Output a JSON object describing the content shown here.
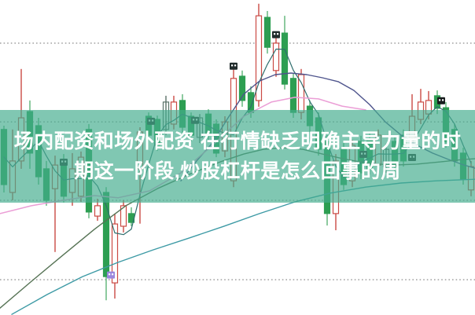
{
  "overlay": {
    "line1": "场内配资和场外配资 在行情缺乏明确主导力量的时",
    "line2": "期这一阶段,炒股杠杆是怎么回事的周",
    "band_color": "rgba(68,172,142,0.68)",
    "text_color": "#ffffff"
  },
  "chart_data": {
    "type": "candlestick",
    "title": "",
    "xlabel": "",
    "ylabel": "",
    "background": "#ffffff",
    "xlim": [
      0,
      604
    ],
    "ylim": [
      0,
      100
    ],
    "grid": {
      "on": true,
      "style": "dotted",
      "color": "#a8a8a8",
      "values": [
        86.3,
        61.3,
        36.4,
        11.2
      ]
    },
    "colors": {
      "bearish_body": "#2d9e52",
      "bearish_wick": "#5cb476",
      "bullish_body": "#cb4a44",
      "bullish_fill": "#ffffff",
      "neutral_body": "#5a7268"
    },
    "candles": [
      {
        "x": 5,
        "o": 58.9,
        "h": 60.1,
        "l": 38.9,
        "c": 41.4,
        "d": "dn"
      },
      {
        "x": 16,
        "o": 38.9,
        "h": 58.9,
        "l": 36.4,
        "c": 48.9,
        "d": "up"
      },
      {
        "x": 27,
        "o": 48.9,
        "h": 78.1,
        "l": 46.4,
        "c": 62.6,
        "d": "up"
      },
      {
        "x": 38,
        "o": 64.6,
        "h": 68.1,
        "l": 46.4,
        "c": 51.4,
        "d": "dn"
      },
      {
        "x": 49,
        "o": 60.1,
        "h": 62.6,
        "l": 41.4,
        "c": 43.9,
        "d": "dn"
      },
      {
        "x": 59,
        "o": 46.4,
        "h": 48.9,
        "l": 34.7,
        "c": 36.4,
        "d": "dn"
      },
      {
        "x": 70,
        "o": 40.1,
        "h": 50.6,
        "l": 20.0,
        "c": 47.6,
        "d": "up"
      },
      {
        "x": 81,
        "o": 48.9,
        "h": 51.1,
        "l": 35.7,
        "c": 37.7,
        "d": "dn"
      },
      {
        "x": 92,
        "o": 38.9,
        "h": 51.4,
        "l": 34.7,
        "c": 46.4,
        "d": "up"
      },
      {
        "x": 103,
        "o": 37.7,
        "h": 51.9,
        "l": 35.9,
        "c": 50.1,
        "d": "up"
      },
      {
        "x": 113,
        "o": 58.9,
        "h": 60.6,
        "l": 30.7,
        "c": 32.7,
        "d": "dn"
      },
      {
        "x": 124,
        "o": 31.4,
        "h": 36.9,
        "l": 29.9,
        "c": 34.7,
        "d": "up"
      },
      {
        "x": 135,
        "o": 38.9,
        "h": 40.6,
        "l": 4.7,
        "c": 12.2,
        "d": "dn"
      },
      {
        "x": 146,
        "o": 10.2,
        "h": 32.2,
        "l": 5.2,
        "c": 28.9,
        "d": "up"
      },
      {
        "x": 157,
        "o": 28.2,
        "h": 36.4,
        "l": 26.2,
        "c": 34.7,
        "d": "up"
      },
      {
        "x": 167,
        "o": 32.2,
        "h": 34.2,
        "l": 28.2,
        "c": 29.4,
        "d": "dn"
      },
      {
        "x": 178,
        "o": 46.4,
        "h": 59.6,
        "l": 29.0,
        "c": 58.1,
        "d": "up"
      },
      {
        "x": 189,
        "o": 63.1,
        "h": 64.3,
        "l": 55.6,
        "c": 57.1,
        "d": "dn"
      },
      {
        "x": 200,
        "o": 62.1,
        "h": 63.3,
        "l": 52.1,
        "c": 53.9,
        "d": "dn"
      },
      {
        "x": 211,
        "o": 58.9,
        "h": 69.6,
        "l": 57.1,
        "c": 67.6,
        "d": "nt"
      },
      {
        "x": 221,
        "o": 60.6,
        "h": 69.6,
        "l": 58.9,
        "c": 67.6,
        "d": "up"
      },
      {
        "x": 232,
        "o": 68.1,
        "h": 70.1,
        "l": 57.6,
        "c": 59.6,
        "d": "dn"
      },
      {
        "x": 243,
        "o": 63.1,
        "h": 64.3,
        "l": 55.1,
        "c": 57.1,
        "d": "dn"
      },
      {
        "x": 254,
        "o": 56.4,
        "h": 63.8,
        "l": 54.6,
        "c": 62.6,
        "d": "nt"
      },
      {
        "x": 265,
        "o": 63.8,
        "h": 65.3,
        "l": 55.4,
        "c": 57.1,
        "d": "dn"
      },
      {
        "x": 275,
        "o": 60.6,
        "h": 62.1,
        "l": 50.1,
        "c": 51.4,
        "d": "dn"
      },
      {
        "x": 286,
        "o": 52.1,
        "h": 63.1,
        "l": 50.1,
        "c": 61.3,
        "d": "up"
      },
      {
        "x": 297,
        "o": 42.6,
        "h": 78.1,
        "l": 40.6,
        "c": 75.1,
        "d": "up"
      },
      {
        "x": 308,
        "o": 75.8,
        "h": 77.6,
        "l": 66.1,
        "c": 68.1,
        "d": "dn"
      },
      {
        "x": 319,
        "o": 70.6,
        "h": 72.6,
        "l": 62.6,
        "c": 64.3,
        "d": "dn"
      },
      {
        "x": 329,
        "o": 68.1,
        "h": 98.8,
        "l": 66.1,
        "c": 95.0,
        "d": "up"
      },
      {
        "x": 340,
        "o": 94.5,
        "h": 96.5,
        "l": 83.0,
        "c": 85.0,
        "d": "dn"
      },
      {
        "x": 351,
        "o": 77.6,
        "h": 88.0,
        "l": 75.6,
        "c": 86.3,
        "d": "up"
      },
      {
        "x": 362,
        "o": 89.5,
        "h": 95.0,
        "l": 71.6,
        "c": 73.3,
        "d": "dn"
      },
      {
        "x": 373,
        "o": 75.1,
        "h": 76.6,
        "l": 62.6,
        "c": 64.3,
        "d": "dn"
      },
      {
        "x": 383,
        "o": 64.3,
        "h": 78.1,
        "l": 62.1,
        "c": 76.3,
        "d": "up"
      },
      {
        "x": 394,
        "o": 66.3,
        "h": 68.1,
        "l": 58.1,
        "c": 60.1,
        "d": "dn"
      },
      {
        "x": 405,
        "o": 62.6,
        "h": 64.3,
        "l": 50.6,
        "c": 52.6,
        "d": "dn"
      },
      {
        "x": 416,
        "o": 55.1,
        "h": 57.1,
        "l": 28.4,
        "c": 32.2,
        "d": "dn"
      },
      {
        "x": 427,
        "o": 32.2,
        "h": 51.1,
        "l": 26.9,
        "c": 48.9,
        "d": "up"
      },
      {
        "x": 437,
        "o": 52.6,
        "h": 54.6,
        "l": 39.7,
        "c": 41.4,
        "d": "dn"
      },
      {
        "x": 448,
        "o": 42.6,
        "h": 55.6,
        "l": 40.6,
        "c": 53.9,
        "d": "up"
      },
      {
        "x": 459,
        "o": 55.1,
        "h": 56.9,
        "l": 43.1,
        "c": 45.1,
        "d": "dn"
      },
      {
        "x": 470,
        "o": 55.6,
        "h": 57.6,
        "l": 44.6,
        "c": 46.4,
        "d": "dn"
      },
      {
        "x": 481,
        "o": 47.6,
        "h": 58.9,
        "l": 45.6,
        "c": 57.1,
        "d": "up"
      },
      {
        "x": 491,
        "o": 47.1,
        "h": 54.4,
        "l": 45.1,
        "c": 52.6,
        "d": "nt"
      },
      {
        "x": 502,
        "o": 55.1,
        "h": 56.9,
        "l": 45.4,
        "c": 47.1,
        "d": "dn"
      },
      {
        "x": 513,
        "o": 57.1,
        "h": 58.9,
        "l": 47.1,
        "c": 48.9,
        "d": "dn"
      },
      {
        "x": 524,
        "o": 56.4,
        "h": 70.1,
        "l": 54.6,
        "c": 63.1,
        "d": "up"
      },
      {
        "x": 535,
        "o": 62.1,
        "h": 71.8,
        "l": 60.6,
        "c": 67.6,
        "d": "up"
      },
      {
        "x": 545,
        "o": 63.8,
        "h": 71.1,
        "l": 62.1,
        "c": 68.1,
        "d": "up"
      },
      {
        "x": 556,
        "o": 69.6,
        "h": 71.3,
        "l": 63.8,
        "c": 65.6,
        "d": "dn"
      },
      {
        "x": 567,
        "o": 65.8,
        "h": 67.6,
        "l": 53.1,
        "c": 55.1,
        "d": "dn"
      },
      {
        "x": 578,
        "o": 58.9,
        "h": 60.6,
        "l": 47.1,
        "c": 48.9,
        "d": "dn"
      },
      {
        "x": 589,
        "o": 51.4,
        "h": 53.1,
        "l": 41.4,
        "c": 43.1,
        "d": "dn"
      },
      {
        "x": 599,
        "o": 39.7,
        "h": 48.9,
        "l": 37.7,
        "c": 47.1,
        "d": "up"
      }
    ],
    "ma_lines": [
      {
        "name": "ma-short",
        "color": "#2f6e6e",
        "width": 1.2,
        "computed": "sma3"
      },
      {
        "name": "ma-mid",
        "color": "#4e548c",
        "width": 1.4,
        "points": [
          [
            230,
            42.6
          ],
          [
            250,
            48.9
          ],
          [
            270,
            54.6
          ],
          [
            290,
            62.6
          ],
          [
            310,
            70.1
          ],
          [
            330,
            74.3
          ],
          [
            350,
            76.3
          ],
          [
            370,
            76.8
          ],
          [
            390,
            76.3
          ],
          [
            410,
            75.3
          ],
          [
            430,
            74.1
          ],
          [
            450,
            71.3
          ],
          [
            470,
            66.8
          ],
          [
            490,
            61.3
          ],
          [
            510,
            57.1
          ],
          [
            530,
            53.9
          ],
          [
            550,
            51.4
          ],
          [
            570,
            49.4
          ],
          [
            590,
            47.6
          ],
          [
            604,
            46.6
          ]
        ]
      },
      {
        "name": "ma-long",
        "color": "#567355",
        "width": 1.4,
        "points": [
          [
            0,
            2.2
          ],
          [
            40,
            10.7
          ],
          [
            80,
            19.0
          ],
          [
            120,
            27.2
          ],
          [
            160,
            34.7
          ],
          [
            200,
            40.1
          ],
          [
            240,
            44.6
          ],
          [
            280,
            48.6
          ],
          [
            310,
            51.1
          ],
          [
            335,
            52.6
          ],
          [
            360,
            53.1
          ],
          [
            385,
            52.6
          ],
          [
            410,
            51.1
          ],
          [
            440,
            49.4
          ],
          [
            470,
            48.1
          ],
          [
            500,
            47.6
          ],
          [
            530,
            47.9
          ],
          [
            560,
            48.6
          ],
          [
            590,
            49.4
          ],
          [
            604,
            49.6
          ]
        ]
      },
      {
        "name": "ma-xlong",
        "color": "#3d9aa5",
        "width": 1.4,
        "points": [
          [
            15,
            0.2
          ],
          [
            60,
            6.5
          ],
          [
            105,
            12.2
          ],
          [
            150,
            16.7
          ],
          [
            195,
            20.7
          ],
          [
            240,
            24.4
          ],
          [
            285,
            28.2
          ],
          [
            330,
            32.2
          ],
          [
            375,
            35.9
          ],
          [
            420,
            38.7
          ],
          [
            465,
            40.6
          ],
          [
            510,
            41.9
          ],
          [
            555,
            42.6
          ],
          [
            604,
            43.1
          ]
        ]
      },
      {
        "name": "ma-pink",
        "color": "#eb9ed6",
        "width": 1.5,
        "points": [
          [
            0,
            32.2
          ],
          [
            40,
            34.7
          ],
          [
            80,
            36.4
          ],
          [
            120,
            37.9
          ],
          [
            150,
            37.2
          ],
          [
            190,
            39.4
          ],
          [
            230,
            45.1
          ],
          [
            270,
            53.9
          ],
          [
            310,
            63.1
          ],
          [
            345,
            67.6
          ],
          [
            375,
            69.1
          ],
          [
            405,
            68.6
          ],
          [
            435,
            66.3
          ],
          [
            465,
            65.1
          ]
        ]
      }
    ],
    "markers": [
      {
        "x": 81,
        "v": 48.5,
        "color": "#22332d"
      },
      {
        "x": 141,
        "v": 12.7,
        "color": "#9b86dd"
      },
      {
        "x": 192,
        "v": 61.5,
        "color": "#22332d"
      },
      {
        "x": 248,
        "v": 61.8,
        "color": "#22332d"
      },
      {
        "x": 297,
        "v": 79.0,
        "color": "#202b2b"
      },
      {
        "x": 351,
        "v": 89.0,
        "color": "#202b2b"
      },
      {
        "x": 462,
        "v": 51.0,
        "color": "#2b2f2e"
      },
      {
        "x": 524,
        "v": 50.0,
        "color": "#2b2f2e"
      },
      {
        "x": 561,
        "v": 68.0,
        "color": "#161c1c"
      }
    ]
  }
}
